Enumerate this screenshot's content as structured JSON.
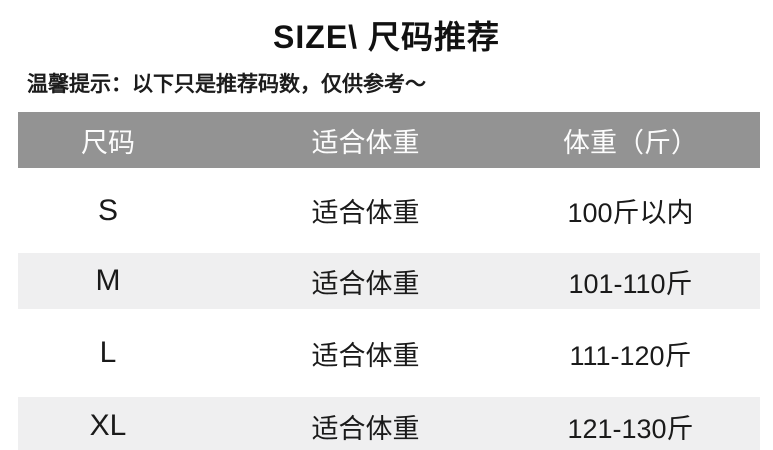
{
  "page": {
    "title": "SIZE\\ 尺码推荐",
    "notice": "温馨提示：以下只是推荐码数，仅供参考～"
  },
  "table": {
    "headers": [
      "尺码",
      "适合体重",
      "体重（斤）"
    ],
    "rows": [
      {
        "size": "S",
        "fit": "适合体重",
        "weight": "100斤以内"
      },
      {
        "size": "M",
        "fit": "适合体重",
        "weight": "101-110斤"
      },
      {
        "size": "L",
        "fit": "适合体重",
        "weight": "111-120斤"
      },
      {
        "size": "XL",
        "fit": "适合体重",
        "weight": "121-130斤"
      }
    ]
  },
  "colors": {
    "header_bg": "#939393",
    "header_text": "#fcfcfc",
    "stripe_bg": "#efeff0",
    "body_text": "#1a1a1a"
  },
  "chart_data": {
    "type": "table",
    "title": "SIZE\\ 尺码推荐",
    "subtitle": "温馨提示：以下只是推荐码数，仅供参考～",
    "columns": [
      "尺码",
      "适合体重",
      "体重（斤）"
    ],
    "rows": [
      [
        "S",
        "适合体重",
        "100斤以内"
      ],
      [
        "M",
        "适合体重",
        "101-110斤"
      ],
      [
        "L",
        "适合体重",
        "111-120斤"
      ],
      [
        "XL",
        "适合体重",
        "121-130斤"
      ]
    ],
    "layout_hints": {
      "header_style": "gray band with white text",
      "zebra_striping": "rows M and XL shaded light gray",
      "alignment": "all columns centered"
    }
  }
}
